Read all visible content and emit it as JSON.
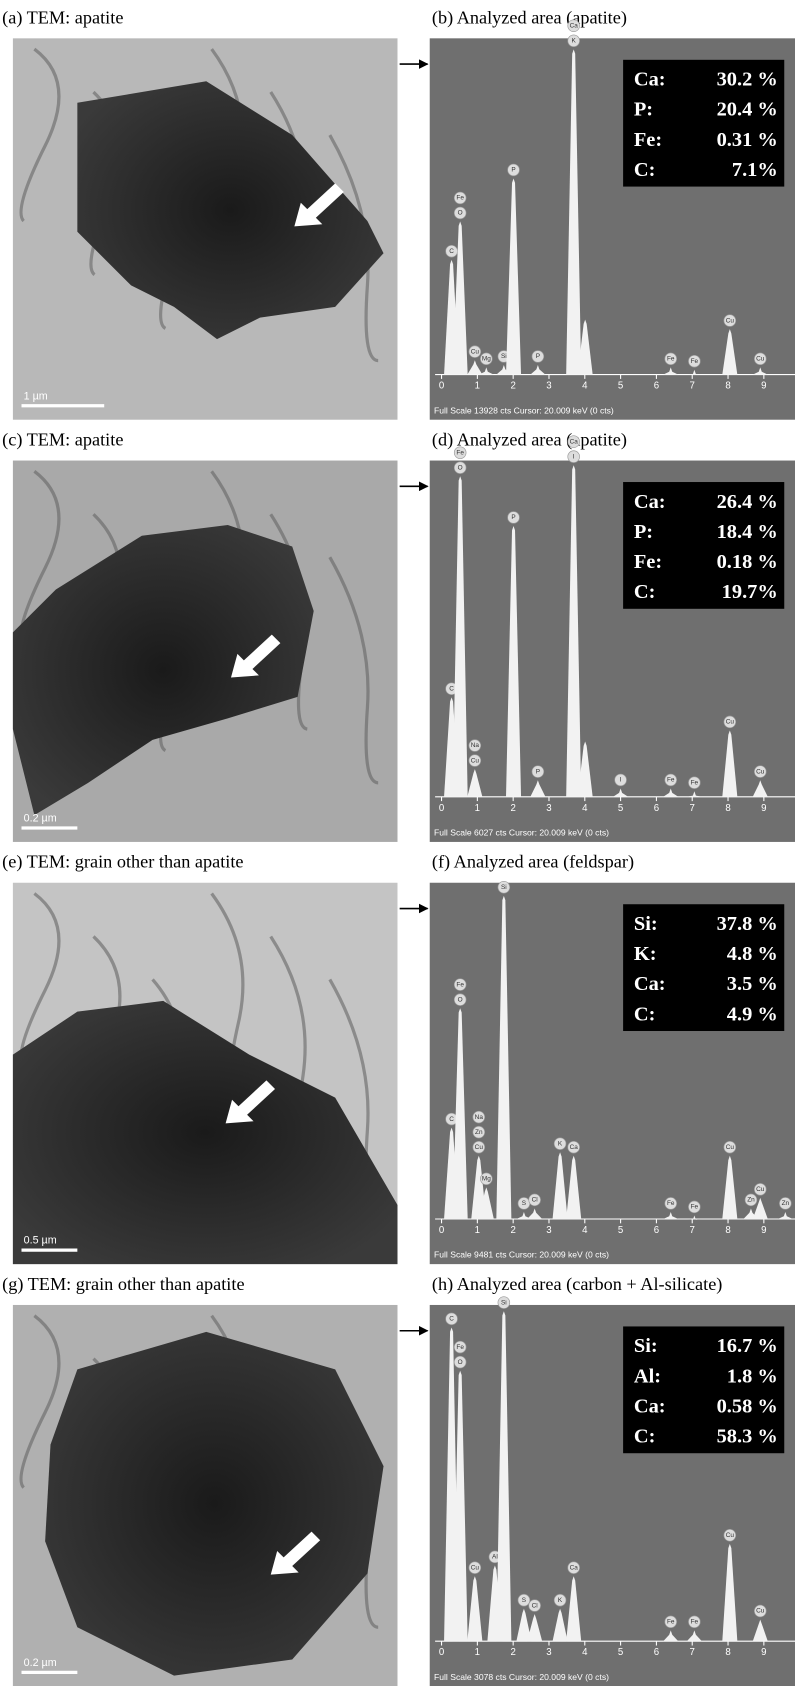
{
  "panels": [
    {
      "left_caption": "(a) TEM: apatite",
      "right_caption": "(b) Analyzed area (apatite)",
      "scale_bar": "1 µm",
      "composition": [
        [
          "Ca:",
          "30.2 %"
        ],
        [
          "P:",
          "20.4 %"
        ],
        [
          "Fe:",
          "0.31 %"
        ],
        [
          "C:",
          "7.1%"
        ]
      ],
      "spectrum": {
        "xlim": [
          0,
          9.9
        ],
        "xticks": [
          0,
          1,
          2,
          3,
          4,
          5,
          6,
          7,
          8,
          9
        ],
        "ylim": [
          0,
          13928
        ],
        "footer": "Full Scale 13928 cts  Cursor: 20.009 keV (0 cts)",
        "peaks": [
          {
            "energy": 0.28,
            "counts": 4800,
            "labels": [
              "C"
            ]
          },
          {
            "energy": 0.52,
            "counts": 6400,
            "labels": [
              "O",
              "Fe"
            ]
          },
          {
            "energy": 0.93,
            "counts": 600,
            "labels": [
              "Cu"
            ]
          },
          {
            "energy": 1.25,
            "counts": 300,
            "labels": [
              "Mg"
            ]
          },
          {
            "energy": 1.74,
            "counts": 400,
            "labels": [
              "Si"
            ]
          },
          {
            "energy": 2.01,
            "counts": 8200,
            "labels": [
              "P"
            ]
          },
          {
            "energy": 2.69,
            "counts": 400,
            "labels": [
              "P"
            ]
          },
          {
            "energy": 3.69,
            "counts": 13600,
            "labels": [
              "K",
              "Ca"
            ]
          },
          {
            "energy": 4.01,
            "counts": 2300,
            "labels": []
          },
          {
            "energy": 6.4,
            "counts": 300,
            "labels": [
              "Fe"
            ]
          },
          {
            "energy": 7.06,
            "counts": 200,
            "labels": [
              "Fe"
            ]
          },
          {
            "energy": 8.05,
            "counts": 1900,
            "labels": [
              "Cu"
            ]
          },
          {
            "energy": 8.9,
            "counts": 300,
            "labels": [
              "Cu"
            ]
          }
        ]
      }
    },
    {
      "left_caption": "(c) TEM: apatite",
      "right_caption": "(d) Analyzed area (apatite)",
      "scale_bar": "0.2 µm",
      "composition": [
        [
          "Ca:",
          "26.4 %"
        ],
        [
          "P:",
          "18.4 %"
        ],
        [
          "Fe:",
          "0.18 %"
        ],
        [
          "C:",
          "19.7%"
        ]
      ],
      "spectrum": {
        "xlim": [
          0,
          9.9
        ],
        "xticks": [
          0,
          1,
          2,
          3,
          4,
          5,
          6,
          7,
          8,
          9
        ],
        "ylim": [
          0,
          6027
        ],
        "footer": "Full Scale 6027 cts  Cursor: 20.009 keV (0 cts)",
        "peaks": [
          {
            "energy": 0.28,
            "counts": 1800,
            "labels": [
              "C"
            ]
          },
          {
            "energy": 0.52,
            "counts": 5800,
            "labels": [
              "O",
              "Fe"
            ]
          },
          {
            "energy": 0.93,
            "counts": 500,
            "labels": [
              "Cu",
              "Na"
            ]
          },
          {
            "energy": 2.01,
            "counts": 4900,
            "labels": [
              "P"
            ]
          },
          {
            "energy": 2.69,
            "counts": 300,
            "labels": [
              "P"
            ]
          },
          {
            "energy": 3.69,
            "counts": 6000,
            "labels": [
              "I",
              "Ca"
            ]
          },
          {
            "energy": 4.01,
            "counts": 1000,
            "labels": []
          },
          {
            "energy": 5.0,
            "counts": 150,
            "labels": [
              "I"
            ]
          },
          {
            "energy": 6.4,
            "counts": 150,
            "labels": [
              "Fe"
            ]
          },
          {
            "energy": 7.06,
            "counts": 100,
            "labels": [
              "Fe"
            ]
          },
          {
            "energy": 8.05,
            "counts": 1200,
            "labels": [
              "Cu"
            ]
          },
          {
            "energy": 8.9,
            "counts": 300,
            "labels": [
              "Cu"
            ]
          }
        ]
      }
    },
    {
      "left_caption": "(e) TEM: grain other than apatite",
      "right_caption": "(f) Analyzed area (feldspar)",
      "scale_bar": "0.5 µm",
      "composition": [
        [
          "Si:",
          "37.8 %"
        ],
        [
          "K:",
          "4.8 %"
        ],
        [
          "Ca:",
          "3.5 %"
        ],
        [
          "C:",
          "4.9 %"
        ]
      ],
      "spectrum": {
        "xlim": [
          0,
          9.9
        ],
        "xticks": [
          0,
          1,
          2,
          3,
          4,
          5,
          6,
          7,
          8,
          9
        ],
        "ylim": [
          0,
          9481
        ],
        "footer": "Full Scale 9481 cts  Cursor: 20.009 keV (0 cts)",
        "peaks": [
          {
            "energy": 0.28,
            "counts": 2600,
            "labels": [
              "C"
            ]
          },
          {
            "energy": 0.52,
            "counts": 6000,
            "labels": [
              "O",
              "Fe"
            ]
          },
          {
            "energy": 1.04,
            "counts": 1800,
            "labels": [
              "Cu",
              "Zn",
              "Na"
            ]
          },
          {
            "energy": 1.25,
            "counts": 900,
            "labels": [
              "Mg"
            ]
          },
          {
            "energy": 1.74,
            "counts": 9200,
            "labels": [
              "Si"
            ]
          },
          {
            "energy": 2.3,
            "counts": 200,
            "labels": [
              "S"
            ]
          },
          {
            "energy": 2.6,
            "counts": 300,
            "labels": [
              "Cl"
            ]
          },
          {
            "energy": 3.31,
            "counts": 1900,
            "labels": [
              "K"
            ]
          },
          {
            "energy": 3.69,
            "counts": 1800,
            "labels": [
              "Ca"
            ]
          },
          {
            "energy": 6.4,
            "counts": 200,
            "labels": [
              "Fe"
            ]
          },
          {
            "energy": 7.06,
            "counts": 100,
            "labels": [
              "Fe"
            ]
          },
          {
            "energy": 8.05,
            "counts": 1800,
            "labels": [
              "Cu"
            ]
          },
          {
            "energy": 8.64,
            "counts": 300,
            "labels": [
              "Zn"
            ]
          },
          {
            "energy": 8.9,
            "counts": 600,
            "labels": [
              "Cu"
            ]
          },
          {
            "energy": 9.6,
            "counts": 200,
            "labels": [
              "Zn"
            ]
          }
        ]
      }
    },
    {
      "left_caption": "(g) TEM: grain other than apatite",
      "right_caption": "(h) Analyzed area (carbon + Al-silicate)",
      "scale_bar": "0.2 µm",
      "composition": [
        [
          "Si:",
          "16.7 %"
        ],
        [
          "Al:",
          "1.8 %"
        ],
        [
          "Ca:",
          "0.58 %"
        ],
        [
          "C:",
          "58.3 %"
        ]
      ],
      "spectrum": {
        "xlim": [
          0,
          9.9
        ],
        "xticks": [
          0,
          1,
          2,
          3,
          4,
          5,
          6,
          7,
          8,
          9
        ],
        "ylim": [
          0,
          3078
        ],
        "footer": "Full Scale 3078 cts  Cursor: 20.009 keV (0 cts)",
        "peaks": [
          {
            "energy": 0.28,
            "counts": 2900,
            "labels": [
              "C"
            ]
          },
          {
            "energy": 0.52,
            "counts": 2500,
            "labels": [
              "O",
              "Fe"
            ]
          },
          {
            "energy": 0.93,
            "counts": 600,
            "labels": [
              "Cu"
            ]
          },
          {
            "energy": 1.49,
            "counts": 700,
            "labels": [
              "Al"
            ]
          },
          {
            "energy": 1.74,
            "counts": 3050,
            "labels": [
              "Si"
            ]
          },
          {
            "energy": 2.3,
            "counts": 300,
            "labels": [
              "S"
            ]
          },
          {
            "energy": 2.6,
            "counts": 250,
            "labels": [
              "Cl"
            ]
          },
          {
            "energy": 3.31,
            "counts": 300,
            "labels": [
              "K"
            ]
          },
          {
            "energy": 3.69,
            "counts": 600,
            "labels": [
              "Ca"
            ]
          },
          {
            "energy": 6.4,
            "counts": 100,
            "labels": [
              "Fe"
            ]
          },
          {
            "energy": 7.06,
            "counts": 100,
            "labels": [
              "Fe"
            ]
          },
          {
            "energy": 8.05,
            "counts": 900,
            "labels": [
              "Cu"
            ]
          },
          {
            "energy": 8.9,
            "counts": 200,
            "labels": [
              "Cu"
            ]
          }
        ]
      }
    }
  ]
}
